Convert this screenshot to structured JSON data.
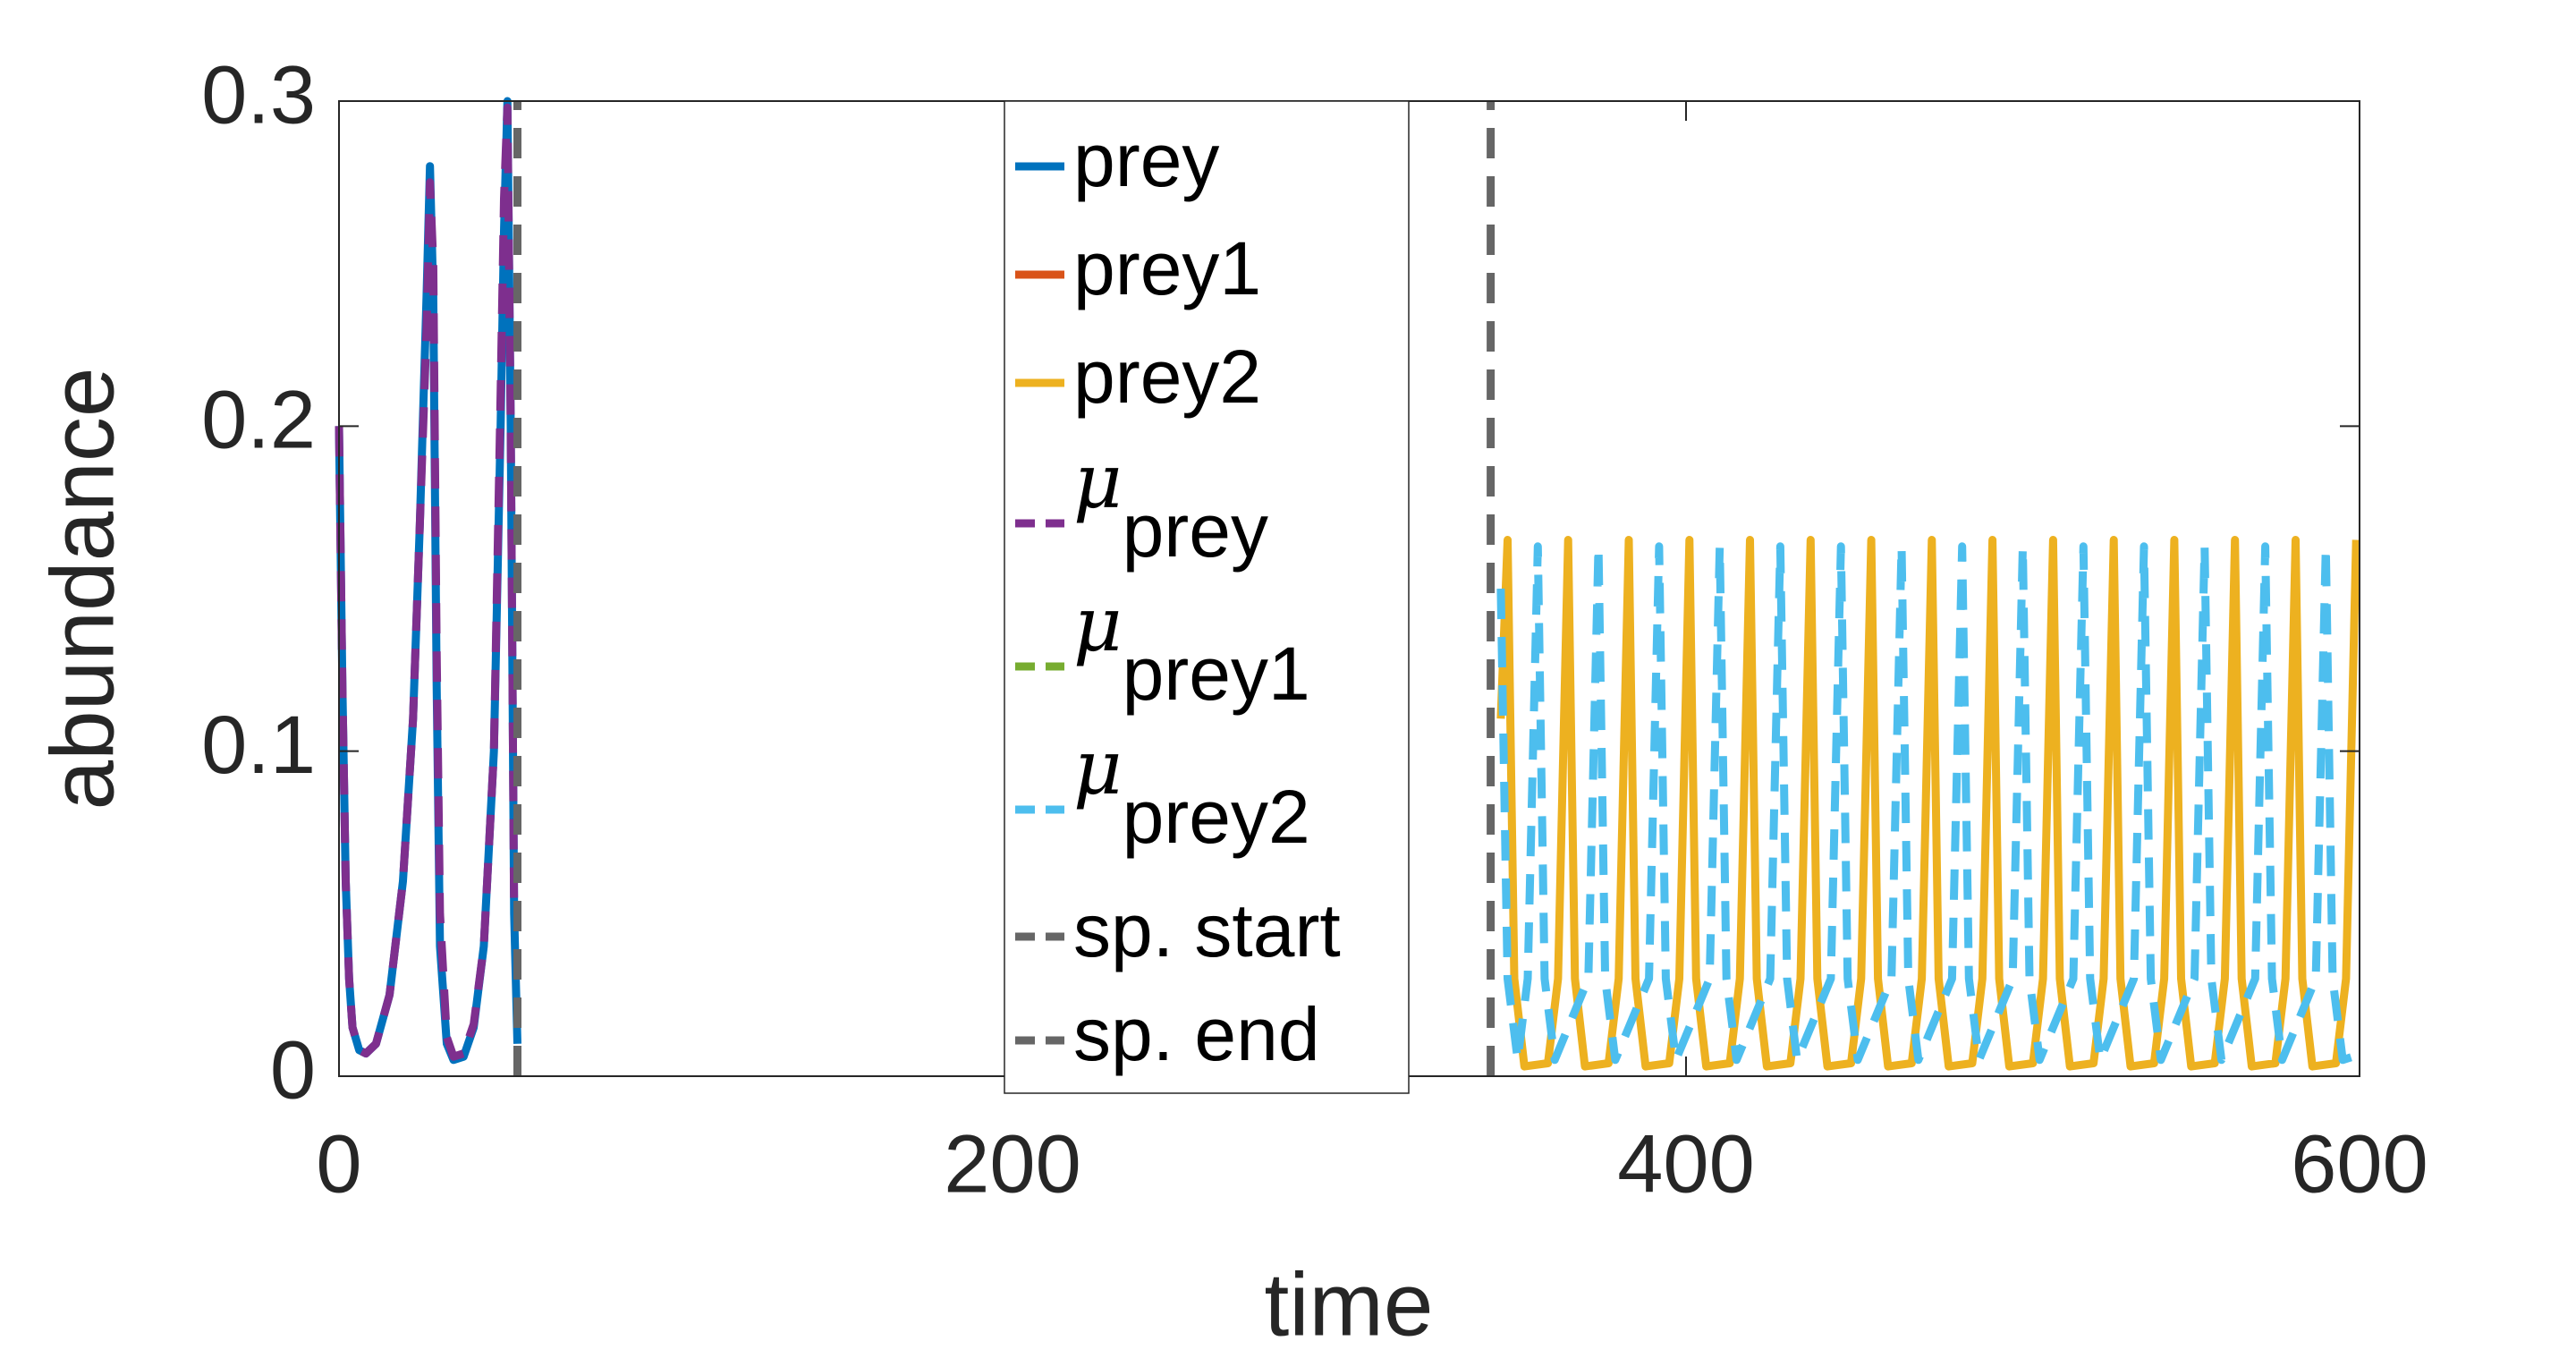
{
  "chart_data": {
    "type": "line",
    "xlabel": "time",
    "ylabel": "abundance",
    "xlim": [
      0,
      600
    ],
    "ylim": [
      0,
      0.3
    ],
    "xticks": [
      0,
      200,
      400,
      600
    ],
    "yticks": [
      0,
      0.1,
      0.2,
      0.3
    ],
    "grid": false,
    "legend": "center",
    "series": [
      {
        "name": "prey",
        "color": "#0072BD",
        "dash": false,
        "x": [
          0,
          1,
          2,
          3,
          4,
          6,
          8,
          11,
          15,
          19,
          22,
          24,
          26,
          27,
          28,
          29,
          30,
          32,
          34,
          37,
          40,
          43,
          46,
          48,
          49,
          50,
          51,
          52,
          53
        ],
        "values": [
          0.2,
          0.12,
          0.06,
          0.03,
          0.015,
          0.008,
          0.007,
          0.01,
          0.025,
          0.06,
          0.11,
          0.17,
          0.24,
          0.28,
          0.24,
          0.12,
          0.04,
          0.01,
          0.005,
          0.006,
          0.015,
          0.04,
          0.1,
          0.2,
          0.26,
          0.3,
          0.2,
          0.05,
          0.01
        ]
      },
      {
        "name": "prey1",
        "color": "#D95319",
        "dash": false,
        "x": [],
        "values": []
      },
      {
        "name": "prey2",
        "color": "#EDB120",
        "dash": false,
        "x": [
          345,
          347,
          349,
          352,
          359,
          362,
          365,
          367,
          370,
          377,
          380,
          383,
          385,
          388,
          395,
          398,
          401,
          403,
          406,
          413,
          416,
          419,
          421,
          424,
          431,
          434,
          437,
          439,
          442,
          449,
          452,
          455,
          457,
          460,
          467,
          470,
          473,
          475,
          478,
          485,
          488,
          491,
          493,
          496,
          503,
          506,
          509,
          511,
          514,
          521,
          524,
          527,
          529,
          532,
          539,
          542,
          545,
          547,
          550,
          557,
          560,
          563,
          565,
          568,
          575,
          578,
          581,
          583,
          586,
          593,
          596,
          599
        ],
        "values": [
          0.11,
          0.165,
          0.03,
          0.003,
          0.004,
          0.03,
          0.165,
          0.03,
          0.003,
          0.004,
          0.03,
          0.165,
          0.03,
          0.003,
          0.004,
          0.03,
          0.165,
          0.03,
          0.003,
          0.004,
          0.03,
          0.165,
          0.03,
          0.003,
          0.004,
          0.03,
          0.165,
          0.03,
          0.003,
          0.004,
          0.03,
          0.165,
          0.03,
          0.003,
          0.004,
          0.03,
          0.165,
          0.03,
          0.003,
          0.004,
          0.03,
          0.165,
          0.03,
          0.003,
          0.004,
          0.03,
          0.165,
          0.03,
          0.003,
          0.004,
          0.03,
          0.165,
          0.03,
          0.003,
          0.004,
          0.03,
          0.165,
          0.03,
          0.003,
          0.004,
          0.03,
          0.165,
          0.03,
          0.003,
          0.004,
          0.03,
          0.165,
          0.03,
          0.003,
          0.004,
          0.03,
          0.165
        ]
      },
      {
        "name": "μ",
        "subscript": "prey",
        "color": "#7E2F8E",
        "dash": true,
        "x": [
          0,
          1,
          2,
          3,
          4,
          6,
          8,
          11,
          15,
          19,
          22,
          24,
          26,
          27,
          28,
          29,
          30,
          32,
          34,
          37,
          40,
          43,
          46,
          48,
          49,
          50,
          51,
          52
        ],
        "values": [
          0.2,
          0.12,
          0.06,
          0.03,
          0.015,
          0.008,
          0.007,
          0.01,
          0.025,
          0.06,
          0.11,
          0.17,
          0.23,
          0.275,
          0.25,
          0.13,
          0.05,
          0.012,
          0.006,
          0.007,
          0.016,
          0.04,
          0.1,
          0.21,
          0.27,
          0.298,
          0.2,
          0.05
        ]
      },
      {
        "name": "μ",
        "subscript": "prey1",
        "color": "#77AC30",
        "dash": true,
        "x": [],
        "values": []
      },
      {
        "name": "μ",
        "subscript": "prey2",
        "color": "#4DBEEE",
        "dash": true,
        "x": [
          345,
          347,
          350,
          353,
          356,
          358,
          361,
          371,
          374,
          376,
          379,
          389,
          392,
          394,
          397,
          407,
          410,
          412,
          415,
          425,
          428,
          430,
          433,
          443,
          446,
          448,
          451,
          461,
          464,
          466,
          469,
          479,
          482,
          484,
          487,
          497,
          500,
          502,
          505,
          515,
          518,
          520,
          523,
          533,
          536,
          538,
          541,
          551,
          554,
          556,
          559,
          569,
          572,
          574,
          577,
          587,
          590,
          592,
          595,
          598
        ],
        "values": [
          0.15,
          0.03,
          0.005,
          0.03,
          0.163,
          0.03,
          0.005,
          0.03,
          0.163,
          0.03,
          0.005,
          0.03,
          0.163,
          0.03,
          0.005,
          0.03,
          0.163,
          0.03,
          0.005,
          0.03,
          0.163,
          0.03,
          0.005,
          0.03,
          0.163,
          0.03,
          0.005,
          0.03,
          0.163,
          0.03,
          0.005,
          0.03,
          0.163,
          0.03,
          0.005,
          0.03,
          0.163,
          0.03,
          0.005,
          0.03,
          0.163,
          0.03,
          0.005,
          0.03,
          0.163,
          0.03,
          0.005,
          0.03,
          0.163,
          0.03,
          0.005,
          0.03,
          0.163,
          0.03,
          0.005,
          0.03,
          0.163,
          0.03,
          0.005,
          0.006
        ]
      },
      {
        "name": "sp. start",
        "color": "#666666",
        "dash": true,
        "x": [
          53,
          53
        ],
        "values": [
          0,
          0.3
        ]
      },
      {
        "name": "sp. end",
        "color": "#666666",
        "dash": true,
        "x": [
          342,
          342
        ],
        "values": [
          0,
          0.3
        ]
      }
    ]
  }
}
